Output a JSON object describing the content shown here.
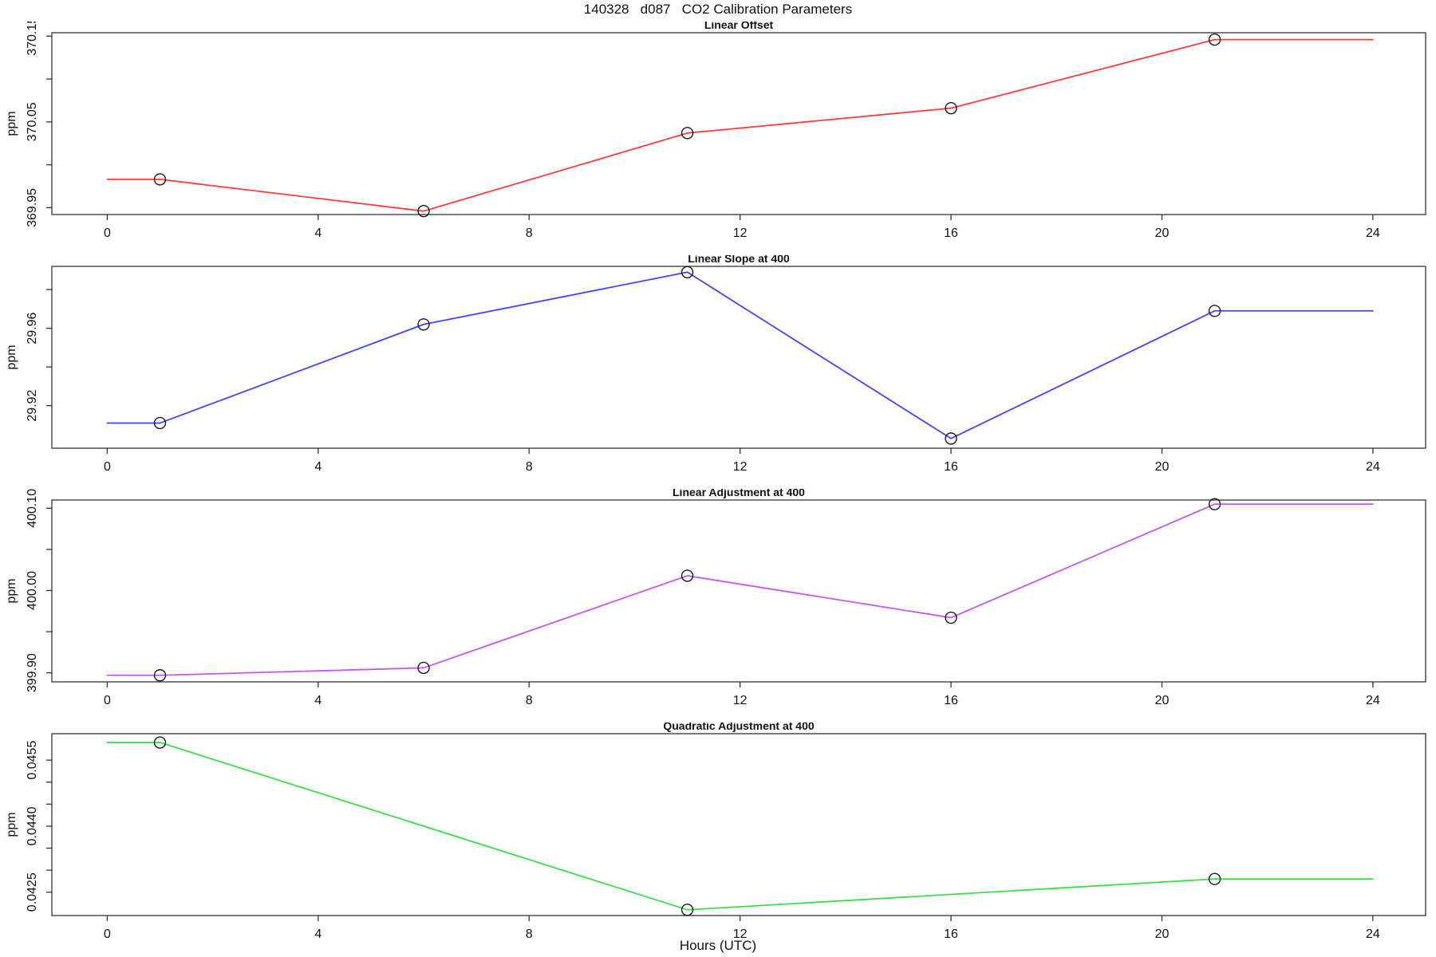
{
  "figure": {
    "title": "140328   d087   CO2 Calibration Parameters",
    "xlabel": "Hours (UTC)",
    "background": "#ffffff",
    "axis_color": "#333333",
    "text_color": "#111111",
    "marker_color": "#1a1a1a"
  },
  "axes": {
    "xlim": [
      -1.05,
      25.0
    ],
    "xticks": [
      0,
      4,
      8,
      12,
      16,
      20,
      24
    ],
    "xtick_labels": [
      "0",
      "4",
      "8",
      "12",
      "16",
      "20",
      "24"
    ],
    "grid": "off",
    "box": "full"
  },
  "chart_data": [
    {
      "type": "line",
      "title": "Linear Offset",
      "ylabel": "ppm",
      "color": "#FF3B3B",
      "x": [
        0,
        1,
        6,
        11,
        16,
        21,
        24
      ],
      "y": [
        369.983,
        369.983,
        369.946,
        370.037,
        370.066,
        370.146,
        370.146
      ],
      "marker_style": "open-circle",
      "marker_indices": [
        1,
        2,
        3,
        4,
        5
      ],
      "ylim": [
        369.942,
        370.154
      ],
      "yticks": [
        369.95,
        370.0,
        370.05,
        370.1,
        370.15
      ],
      "ytick_labels": [
        "369.95",
        "",
        "370.05",
        "",
        "370.15"
      ]
    },
    {
      "type": "line",
      "title": "Linear Slope at 400",
      "ylabel": "ppm",
      "color": "#4343FF",
      "x": [
        0,
        1,
        6,
        11,
        16,
        21,
        24
      ],
      "y": [
        29.911,
        29.911,
        29.962,
        29.989,
        29.903,
        29.969,
        29.969
      ],
      "marker_style": "open-circle",
      "marker_indices": [
        1,
        2,
        3,
        4,
        5
      ],
      "ylim": [
        29.898,
        29.992
      ],
      "yticks": [
        29.92,
        29.94,
        29.96,
        29.98
      ],
      "ytick_labels": [
        "29.92",
        "",
        "29.96",
        ""
      ]
    },
    {
      "type": "line",
      "title": "Linear Adjustment at 400",
      "ylabel": "ppm",
      "color": "#C558EC",
      "x": [
        0,
        1,
        6,
        11,
        16,
        21,
        24
      ],
      "y": [
        399.897,
        399.897,
        399.906,
        400.018,
        399.967,
        400.105,
        400.105
      ],
      "marker_style": "open-circle",
      "marker_indices": [
        1,
        2,
        3,
        4,
        5
      ],
      "ylim": [
        399.889,
        400.11
      ],
      "yticks": [
        399.9,
        399.95,
        400.0,
        400.05,
        400.1
      ],
      "ytick_labels": [
        "399.90",
        "",
        "400.00",
        "",
        "400.10"
      ]
    },
    {
      "type": "line",
      "title": "Quadratic Adjustment at 400",
      "ylabel": "ppm",
      "color": "#3BDE4C",
      "x": [
        0,
        1,
        11,
        21,
        24
      ],
      "y": [
        0.0459,
        0.0459,
        0.0421,
        0.0428,
        0.0428
      ],
      "marker_style": "open-circle",
      "marker_indices": [
        1,
        2,
        3
      ],
      "ylim": [
        0.04197,
        0.0461
      ],
      "yticks": [
        0.0425,
        0.043,
        0.0435,
        0.044,
        0.0445,
        0.045,
        0.0455
      ],
      "ytick_labels": [
        "0.0425",
        "",
        "",
        "0.0440",
        "",
        "",
        "0.0455"
      ]
    }
  ]
}
